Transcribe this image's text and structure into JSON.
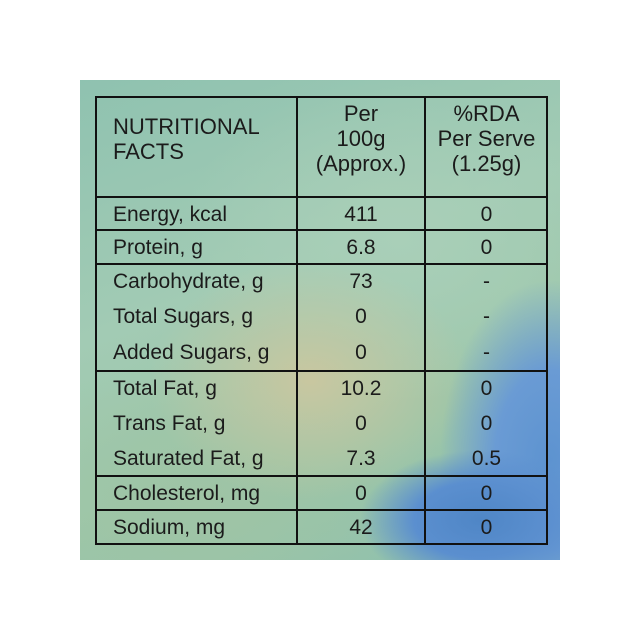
{
  "table": {
    "header": [
      [
        "NUTRITIONAL",
        "FACTS"
      ],
      [
        "Per",
        "100g",
        "(Approx.)"
      ],
      [
        "%RDA",
        "Per Serve",
        "(1.25g)"
      ]
    ],
    "rows": [
      [
        "Energy, kcal",
        "411",
        "0"
      ],
      [
        "Protein, g",
        "6.8",
        "0"
      ],
      [
        "Carbohydrate, g",
        "73",
        "-"
      ],
      [
        "Total Sugars, g",
        "0",
        "-"
      ],
      [
        "Added Sugars, g",
        "0",
        "-"
      ],
      [
        "Total Fat, g",
        "10.2",
        "0"
      ],
      [
        "Trans Fat, g",
        "0",
        "0"
      ],
      [
        "Saturated Fat, g",
        "7.3",
        "0.5"
      ],
      [
        "Cholesterol, mg",
        "0",
        "0"
      ],
      [
        "Sodium, mg",
        "42",
        "0"
      ]
    ]
  }
}
